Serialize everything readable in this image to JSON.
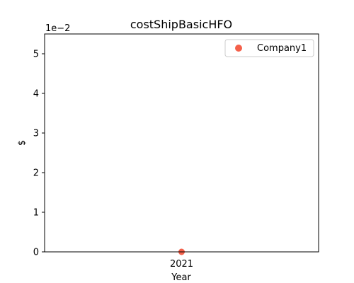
{
  "chart_data": {
    "type": "scatter",
    "title": "costShipBasicHFO",
    "xlabel": "Year",
    "ylabel": "$",
    "y_offset_text": "1e−2",
    "x_categories": [
      "2021"
    ],
    "series": [
      {
        "name": "Company1",
        "color": "#f4604a",
        "points": [
          {
            "x": "2021",
            "y": 0
          }
        ]
      }
    ],
    "ylim": [
      0,
      0.055
    ],
    "y_ticks": [
      0,
      0.01,
      0.02,
      0.03,
      0.04,
      0.05
    ],
    "y_tick_labels": [
      "0",
      "1",
      "2",
      "3",
      "4",
      "5"
    ],
    "grid": false,
    "legend_position": "top-right"
  }
}
